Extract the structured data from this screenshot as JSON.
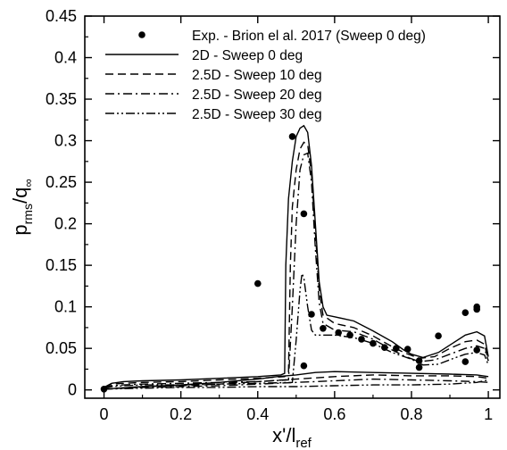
{
  "chart_data": {
    "type": "line",
    "title": "",
    "xlabel": {
      "base": "x'/l",
      "sub": "ref"
    },
    "ylabel": {
      "base": "p",
      "sub": "rms",
      "mid": "/q",
      "sub2": "∞"
    },
    "xlim": [
      -0.05,
      1.03
    ],
    "ylim": [
      -0.01,
      0.45
    ],
    "xticks": [
      "0",
      "0.2",
      "0.4",
      "0.6",
      "0.8",
      "1"
    ],
    "xtick_values": [
      0,
      0.2,
      0.4,
      0.6,
      0.8,
      1.0
    ],
    "yticks": [
      "0",
      "0.05",
      "0.1",
      "0.15",
      "0.2",
      "0.25",
      "0.3",
      "0.35",
      "0.4",
      "0.45"
    ],
    "ytick_values": [
      0,
      0.05,
      0.1,
      0.15,
      0.2,
      0.25,
      0.3,
      0.35,
      0.4,
      0.45
    ],
    "grid": false,
    "legend_position": "top-right",
    "colors": {
      "ink": "#000000",
      "background": "#ffffff"
    },
    "series": [
      {
        "name": "Exp. - Brion el al. 2017 (Sweep 0 deg)",
        "style": "markers",
        "points": [
          [
            0.0,
            0.001
          ],
          [
            0.4,
            0.128
          ],
          [
            0.49,
            0.305
          ],
          [
            0.52,
            0.212
          ],
          [
            0.52,
            0.029
          ],
          [
            0.54,
            0.091
          ],
          [
            0.57,
            0.074
          ],
          [
            0.61,
            0.069
          ],
          [
            0.64,
            0.066
          ],
          [
            0.67,
            0.061
          ],
          [
            0.7,
            0.056
          ],
          [
            0.73,
            0.051
          ],
          [
            0.76,
            0.05
          ],
          [
            0.79,
            0.049
          ],
          [
            0.82,
            0.035
          ],
          [
            0.82,
            0.027
          ],
          [
            0.87,
            0.065
          ],
          [
            0.94,
            0.093
          ],
          [
            0.94,
            0.034
          ],
          [
            0.97,
            0.097
          ],
          [
            0.97,
            0.1
          ],
          [
            0.97,
            0.048
          ]
        ]
      },
      {
        "name": "2D    - Sweep 0 deg",
        "style": "solid",
        "points": [
          [
            0.0,
            0.003
          ],
          [
            0.02,
            0.008
          ],
          [
            0.05,
            0.01
          ],
          [
            0.1,
            0.011
          ],
          [
            0.2,
            0.012
          ],
          [
            0.3,
            0.014
          ],
          [
            0.4,
            0.016
          ],
          [
            0.46,
            0.018
          ],
          [
            0.47,
            0.02
          ],
          [
            0.473,
            0.15
          ],
          [
            0.48,
            0.23
          ],
          [
            0.49,
            0.275
          ],
          [
            0.5,
            0.305
          ],
          [
            0.51,
            0.315
          ],
          [
            0.52,
            0.318
          ],
          [
            0.53,
            0.31
          ],
          [
            0.54,
            0.27
          ],
          [
            0.55,
            0.2
          ],
          [
            0.56,
            0.13
          ],
          [
            0.57,
            0.1
          ],
          [
            0.58,
            0.09
          ],
          [
            0.6,
            0.088
          ],
          [
            0.65,
            0.083
          ],
          [
            0.7,
            0.071
          ],
          [
            0.75,
            0.058
          ],
          [
            0.78,
            0.048
          ],
          [
            0.8,
            0.043
          ],
          [
            0.83,
            0.039
          ],
          [
            0.87,
            0.045
          ],
          [
            0.91,
            0.057
          ],
          [
            0.94,
            0.066
          ],
          [
            0.97,
            0.07
          ],
          [
            0.99,
            0.065
          ],
          [
            1.0,
            0.04
          ]
        ]
      },
      {
        "name": "2.5D - Sweep 10 deg",
        "style": "dashed",
        "points": [
          [
            0.0,
            0.003
          ],
          [
            0.02,
            0.007
          ],
          [
            0.05,
            0.008
          ],
          [
            0.1,
            0.009
          ],
          [
            0.2,
            0.01
          ],
          [
            0.3,
            0.012
          ],
          [
            0.4,
            0.014
          ],
          [
            0.47,
            0.016
          ],
          [
            0.48,
            0.02
          ],
          [
            0.485,
            0.15
          ],
          [
            0.49,
            0.22
          ],
          [
            0.5,
            0.265
          ],
          [
            0.51,
            0.29
          ],
          [
            0.52,
            0.298
          ],
          [
            0.53,
            0.295
          ],
          [
            0.54,
            0.26
          ],
          [
            0.55,
            0.19
          ],
          [
            0.56,
            0.12
          ],
          [
            0.57,
            0.09
          ],
          [
            0.6,
            0.08
          ],
          [
            0.65,
            0.075
          ],
          [
            0.7,
            0.065
          ],
          [
            0.75,
            0.052
          ],
          [
            0.78,
            0.045
          ],
          [
            0.82,
            0.038
          ],
          [
            0.86,
            0.04
          ],
          [
            0.9,
            0.05
          ],
          [
            0.94,
            0.058
          ],
          [
            0.97,
            0.06
          ],
          [
            0.99,
            0.055
          ],
          [
            1.0,
            0.035
          ]
        ]
      },
      {
        "name": "2.5D - Sweep 20 deg",
        "style": "dashdot",
        "points": [
          [
            0.0,
            0.002
          ],
          [
            0.02,
            0.005
          ],
          [
            0.05,
            0.006
          ],
          [
            0.1,
            0.007
          ],
          [
            0.2,
            0.008
          ],
          [
            0.3,
            0.009
          ],
          [
            0.4,
            0.01
          ],
          [
            0.48,
            0.012
          ],
          [
            0.49,
            0.1
          ],
          [
            0.5,
            0.2
          ],
          [
            0.51,
            0.265
          ],
          [
            0.52,
            0.283
          ],
          [
            0.53,
            0.285
          ],
          [
            0.54,
            0.25
          ],
          [
            0.55,
            0.17
          ],
          [
            0.56,
            0.105
          ],
          [
            0.57,
            0.08
          ],
          [
            0.6,
            0.072
          ],
          [
            0.65,
            0.07
          ],
          [
            0.7,
            0.061
          ],
          [
            0.75,
            0.048
          ],
          [
            0.78,
            0.041
          ],
          [
            0.82,
            0.034
          ],
          [
            0.86,
            0.036
          ],
          [
            0.9,
            0.043
          ],
          [
            0.94,
            0.05
          ],
          [
            0.97,
            0.053
          ],
          [
            0.99,
            0.05
          ],
          [
            1.0,
            0.035
          ]
        ]
      },
      {
        "name": "2.5D - Sweep 30 deg",
        "style": "dashdotdot",
        "points": [
          [
            0.0,
            0.002
          ],
          [
            0.02,
            0.004
          ],
          [
            0.05,
            0.005
          ],
          [
            0.1,
            0.006
          ],
          [
            0.2,
            0.006
          ],
          [
            0.3,
            0.007
          ],
          [
            0.4,
            0.008
          ],
          [
            0.49,
            0.009
          ],
          [
            0.5,
            0.06
          ],
          [
            0.51,
            0.12
          ],
          [
            0.515,
            0.14
          ],
          [
            0.52,
            0.135
          ],
          [
            0.53,
            0.1
          ],
          [
            0.54,
            0.072
          ],
          [
            0.55,
            0.066
          ],
          [
            0.6,
            0.066
          ],
          [
            0.65,
            0.063
          ],
          [
            0.7,
            0.056
          ],
          [
            0.75,
            0.045
          ],
          [
            0.8,
            0.037
          ],
          [
            0.83,
            0.03
          ],
          [
            0.87,
            0.031
          ],
          [
            0.91,
            0.038
          ],
          [
            0.94,
            0.043
          ],
          [
            0.97,
            0.045
          ],
          [
            0.99,
            0.042
          ],
          [
            1.0,
            0.03
          ]
        ]
      },
      {
        "name": "",
        "style": "solid",
        "points": [
          [
            0.0,
            0.001
          ],
          [
            0.1,
            0.004
          ],
          [
            0.2,
            0.006
          ],
          [
            0.3,
            0.009
          ],
          [
            0.4,
            0.013
          ],
          [
            0.45,
            0.016
          ],
          [
            0.5,
            0.018
          ],
          [
            0.55,
            0.021
          ],
          [
            0.6,
            0.022
          ],
          [
            0.7,
            0.021
          ],
          [
            0.8,
            0.02
          ],
          [
            0.9,
            0.019
          ],
          [
            0.97,
            0.018
          ],
          [
            1.0,
            0.016
          ]
        ]
      },
      {
        "name": "",
        "style": "dashed",
        "points": [
          [
            0.0,
            0.001
          ],
          [
            0.1,
            0.004
          ],
          [
            0.2,
            0.005
          ],
          [
            0.3,
            0.007
          ],
          [
            0.4,
            0.01
          ],
          [
            0.5,
            0.013
          ],
          [
            0.6,
            0.016
          ],
          [
            0.7,
            0.018
          ],
          [
            0.8,
            0.017
          ],
          [
            0.9,
            0.017
          ],
          [
            0.97,
            0.016
          ],
          [
            1.0,
            0.014
          ]
        ]
      },
      {
        "name": "",
        "style": "dashdot",
        "points": [
          [
            0.0,
            0.001
          ],
          [
            0.1,
            0.003
          ],
          [
            0.2,
            0.004
          ],
          [
            0.3,
            0.005
          ],
          [
            0.4,
            0.007
          ],
          [
            0.5,
            0.009
          ],
          [
            0.6,
            0.011
          ],
          [
            0.7,
            0.013
          ],
          [
            0.8,
            0.012
          ],
          [
            0.9,
            0.011
          ],
          [
            0.97,
            0.01
          ],
          [
            1.0,
            0.009
          ]
        ]
      },
      {
        "name": "",
        "style": "dashdotdot",
        "points": [
          [
            0.0,
            0.001
          ],
          [
            0.1,
            0.002
          ],
          [
            0.2,
            0.003
          ],
          [
            0.3,
            0.003
          ],
          [
            0.4,
            0.004
          ],
          [
            0.5,
            0.004
          ],
          [
            0.6,
            0.005
          ],
          [
            0.7,
            0.006
          ],
          [
            0.8,
            0.006
          ],
          [
            0.9,
            0.007
          ],
          [
            0.97,
            0.009
          ],
          [
            1.0,
            0.012
          ]
        ]
      }
    ]
  }
}
